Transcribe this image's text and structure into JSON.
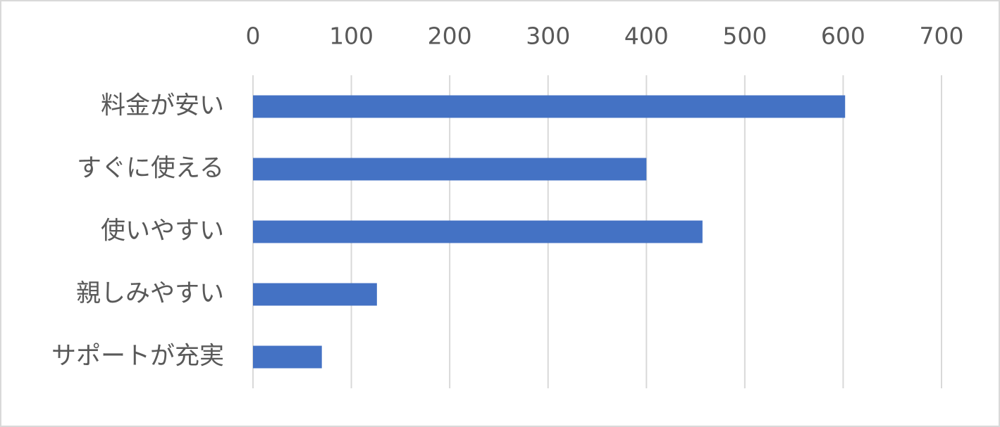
{
  "chart_data": {
    "type": "bar",
    "orientation": "horizontal",
    "categories": [
      "料金が安い",
      "すぐに使える",
      "使いやすい",
      "親しみやすい",
      "サポートが充実"
    ],
    "values": [
      602,
      400,
      457,
      126,
      70
    ],
    "color": "#4472c4",
    "xlim": [
      0,
      700
    ],
    "xticks": [
      0,
      100,
      200,
      300,
      400,
      500,
      600,
      700
    ],
    "grid": true
  }
}
